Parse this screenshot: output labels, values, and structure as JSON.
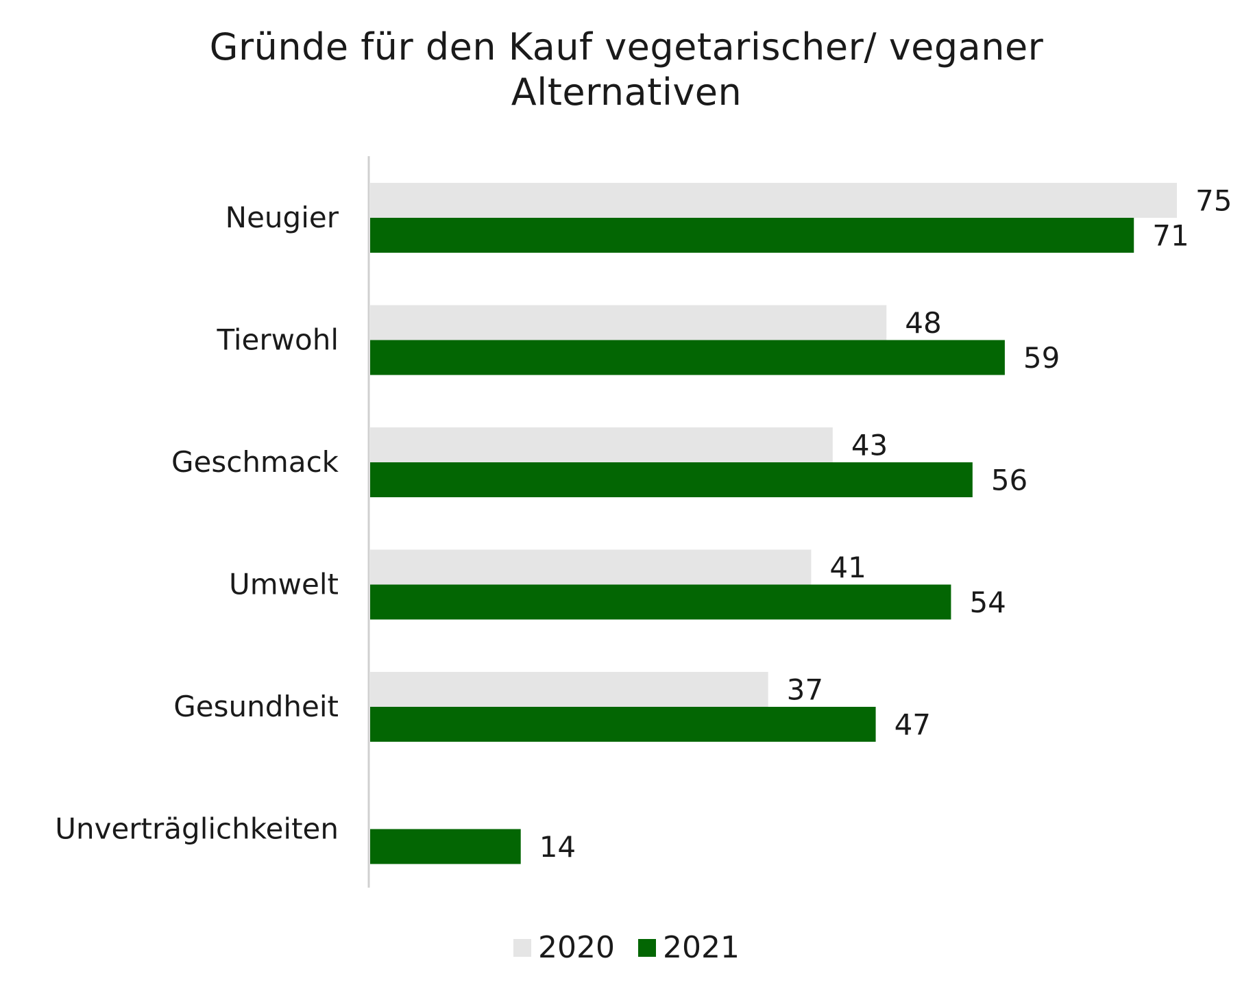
{
  "chart_data": {
    "type": "bar",
    "orientation": "horizontal",
    "title_lines": [
      "Gründe für den Kauf vegetarischer/ veganer",
      "Alternativen"
    ],
    "categories": [
      "Neugier",
      "Tierwohl",
      "Geschmack",
      "Umwelt",
      "Gesundheit",
      "Unverträglichkeiten"
    ],
    "series": [
      {
        "name": "2020",
        "color": "#e5e5e5",
        "values": [
          75,
          48,
          43,
          41,
          37,
          null
        ]
      },
      {
        "name": "2021",
        "color": "#036603",
        "values": [
          71,
          59,
          56,
          54,
          47,
          14
        ]
      }
    ],
    "xlim": [
      0,
      75
    ],
    "grid": false,
    "legend_position": "bottom"
  }
}
